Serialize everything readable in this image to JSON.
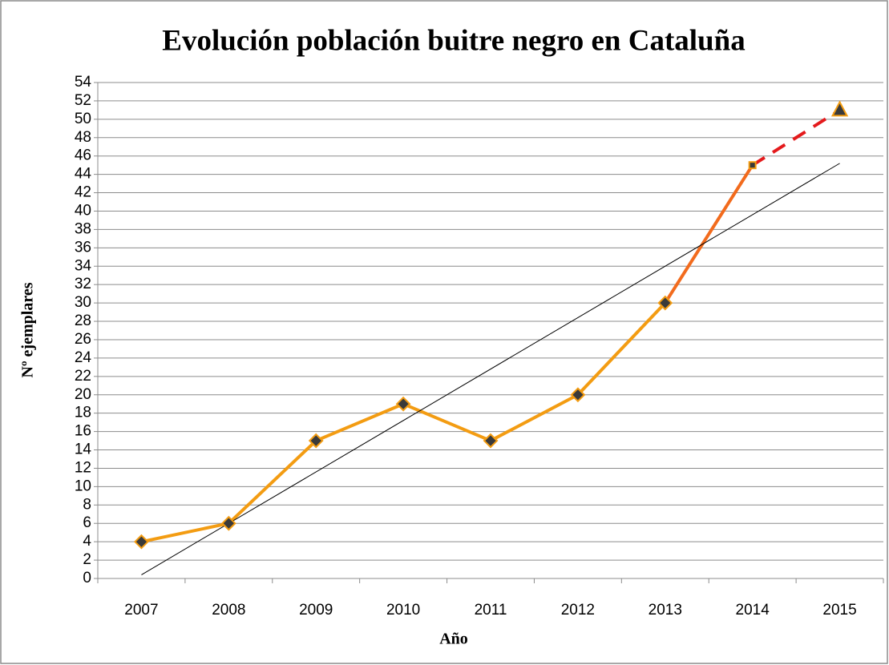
{
  "chart_data": {
    "type": "line",
    "title": "Evolución población buitre negro en Cataluña",
    "x_label": "Año",
    "y_label": "Nº ejemplares",
    "categories": [
      "2007",
      "2008",
      "2009",
      "2010",
      "2011",
      "2012",
      "2013",
      "2014",
      "2015"
    ],
    "series": [
      {
        "color": "#f39c12",
        "values": [
          4,
          6,
          15,
          19,
          15,
          20,
          30,
          45,
          51
        ],
        "segment_colors": [
          "#f39c12",
          "#f39c12",
          "#f39c12",
          "#f39c12",
          "#f39c12",
          "#f39c12",
          "#f26b1d",
          "#e41a1c"
        ],
        "segment_dashed": [
          false,
          false,
          false,
          false,
          false,
          false,
          false,
          true
        ],
        "markers": [
          "diamond",
          "diamond",
          "diamond",
          "diamond",
          "diamond",
          "diamond",
          "diamond",
          "square",
          "triangle"
        ],
        "marker_fill": "#3a3a3a"
      }
    ],
    "trend": {
      "color": "#000000",
      "values": [
        0.4,
        45.2
      ]
    },
    "ylim": [
      0,
      54
    ],
    "yticks": [
      0,
      2,
      4,
      6,
      8,
      10,
      12,
      14,
      16,
      18,
      20,
      22,
      24,
      26,
      28,
      30,
      32,
      34,
      36,
      38,
      40,
      42,
      44,
      46,
      48,
      50,
      52,
      54
    ],
    "grid": true
  }
}
